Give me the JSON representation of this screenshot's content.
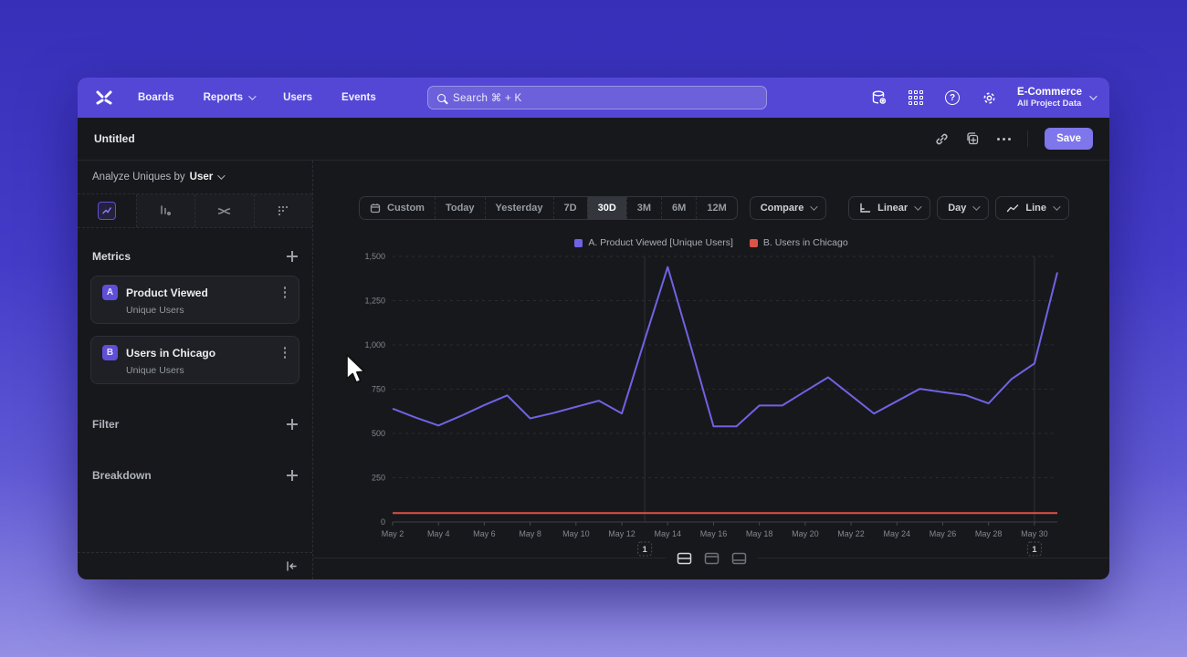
{
  "nav": {
    "items": [
      "Boards",
      "Reports",
      "Users",
      "Events"
    ],
    "search_placeholder": "Search  ⌘ + K",
    "project_name": "E-Commerce",
    "project_subtitle": "All Project Data",
    "help_glyph": "?"
  },
  "titlebar": {
    "title": "Untitled",
    "save_label": "Save"
  },
  "sidebar": {
    "analyze_prefix": "Analyze Uniques by",
    "analyze_value": "User",
    "metrics_title": "Metrics",
    "metrics": [
      {
        "badge": "A",
        "name": "Product Viewed",
        "subtitle": "Unique Users"
      },
      {
        "badge": "B",
        "name": "Users in Chicago",
        "subtitle": "Unique Users"
      }
    ],
    "filter_label": "Filter",
    "breakdown_label": "Breakdown"
  },
  "controls": {
    "ranges": [
      "Custom",
      "Today",
      "Yesterday",
      "7D",
      "30D",
      "3M",
      "6M",
      "12M"
    ],
    "selected_range": "30D",
    "compare_label": "Compare",
    "scale_label": "Linear",
    "granularity_label": "Day",
    "chart_type_label": "Line"
  },
  "chart_data": {
    "type": "line",
    "title": "",
    "xlabel": "",
    "ylabel": "",
    "ylim": [
      0,
      1500
    ],
    "y_ticks": [
      0,
      250,
      500,
      750,
      1000,
      1250,
      1500
    ],
    "grid": "horizontal-dashed",
    "legend_position": "top-center",
    "x": [
      "May 2",
      "May 3",
      "May 4",
      "May 5",
      "May 6",
      "May 7",
      "May 8",
      "May 9",
      "May 10",
      "May 11",
      "May 12",
      "May 13",
      "May 14",
      "May 15",
      "May 16",
      "May 17",
      "May 18",
      "May 19",
      "May 20",
      "May 21",
      "May 22",
      "May 23",
      "May 24",
      "May 25",
      "May 26",
      "May 27",
      "May 28",
      "May 29",
      "May 30",
      "May 31"
    ],
    "x_tick_labels": [
      "May 2",
      "May 4",
      "May 6",
      "May 8",
      "May 10",
      "May 12",
      "May 14",
      "May 16",
      "May 18",
      "May 20",
      "May 22",
      "May 24",
      "May 26",
      "May 28",
      "May 30"
    ],
    "series": [
      {
        "name": "A. Product Viewed [Unique Users]",
        "color": "#6f63e3",
        "values": [
          640,
          590,
          545,
          600,
          660,
          715,
          585,
          615,
          650,
          685,
          613,
          1030,
          1440,
          995,
          540,
          540,
          658,
          658,
          738,
          817,
          715,
          612,
          682,
          752,
          733,
          716,
          670,
          807,
          895,
          1410
        ]
      },
      {
        "name": "B. Users in Chicago",
        "color": "#dc5347",
        "values": [
          50,
          50,
          50,
          50,
          50,
          50,
          50,
          50,
          50,
          50,
          50,
          50,
          50,
          50,
          50,
          50,
          50,
          50,
          50,
          50,
          50,
          50,
          50,
          50,
          50,
          50,
          50,
          50,
          50,
          50
        ]
      }
    ],
    "annotations": [
      {
        "label": "1",
        "x_index": 11
      },
      {
        "label": "1",
        "x_index": 28
      }
    ]
  }
}
